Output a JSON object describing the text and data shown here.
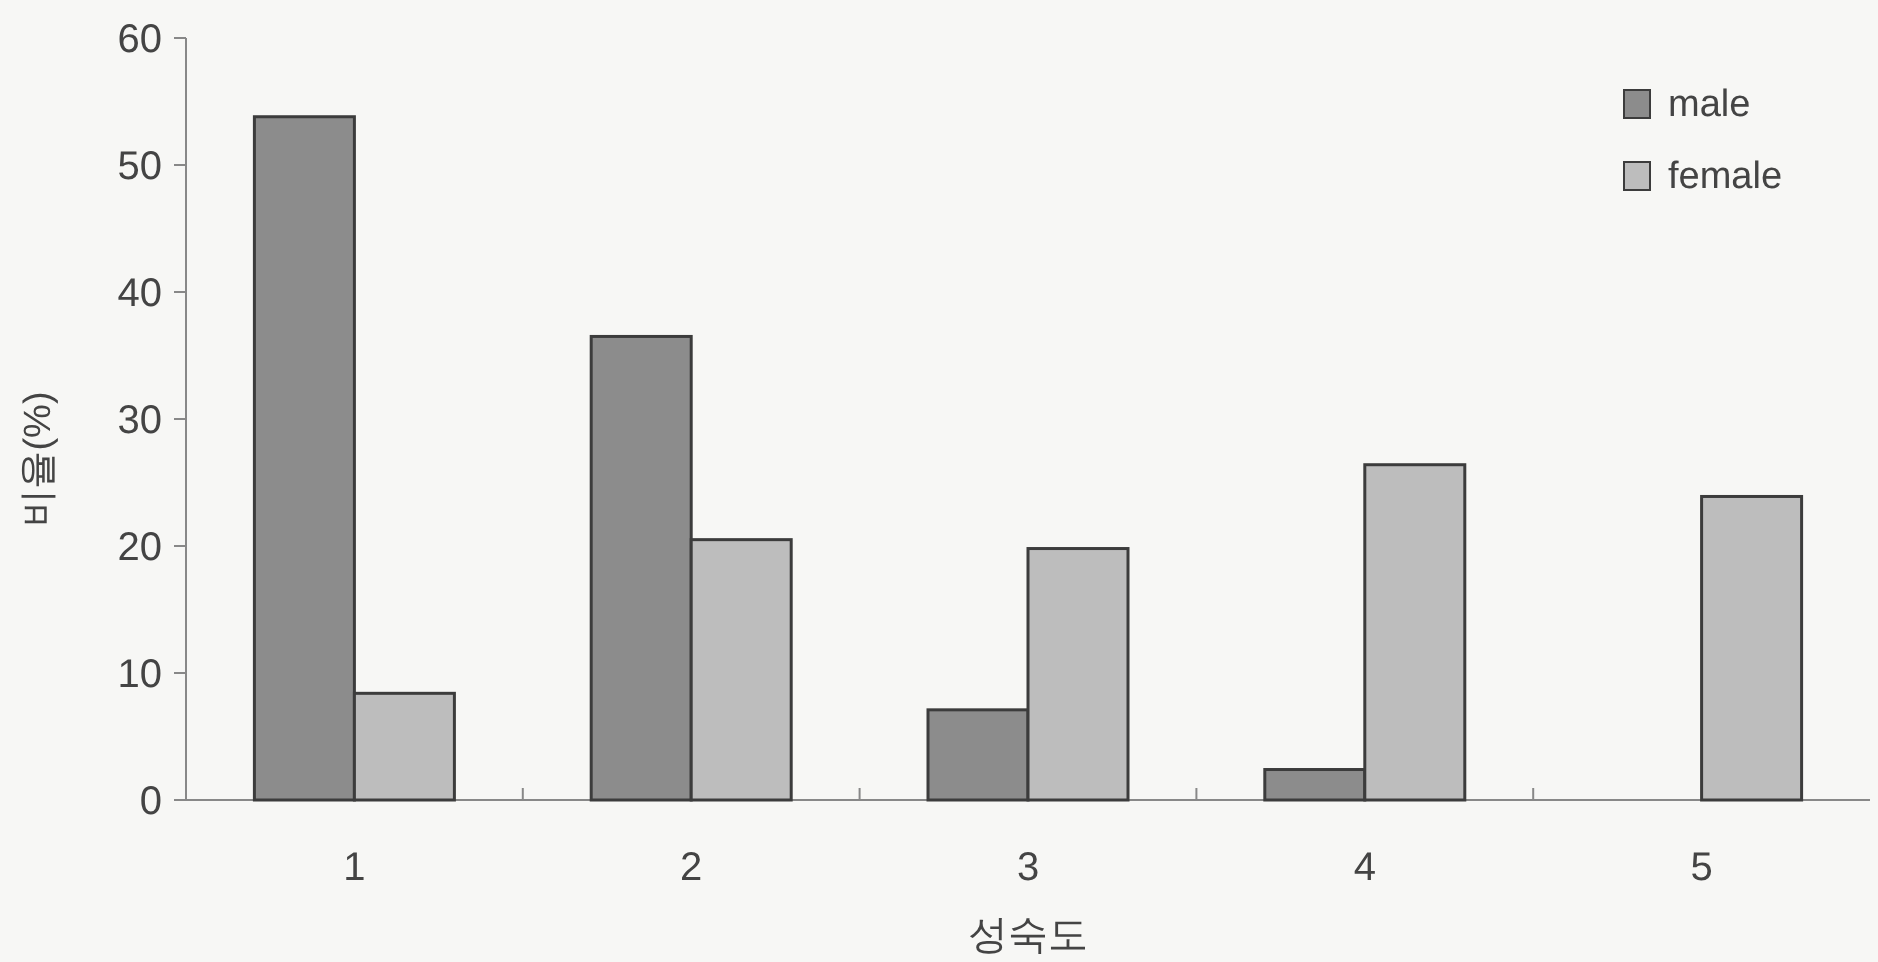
{
  "chart_data": {
    "type": "bar",
    "xlabel": "성숙도",
    "ylabel": "비율(%)",
    "categories": [
      "1",
      "2",
      "3",
      "4",
      "5"
    ],
    "series": [
      {
        "name": "male",
        "color": "#8c8c8c",
        "values": [
          53.8,
          36.5,
          7.1,
          2.4,
          null
        ]
      },
      {
        "name": "female",
        "color": "#bdbdbd",
        "values": [
          8.4,
          20.5,
          19.8,
          26.4,
          23.9
        ]
      }
    ],
    "ylim": [
      0,
      60
    ],
    "yticks": [
      0,
      10,
      20,
      30,
      40,
      50,
      60
    ],
    "legend": "top right",
    "grid": false
  }
}
